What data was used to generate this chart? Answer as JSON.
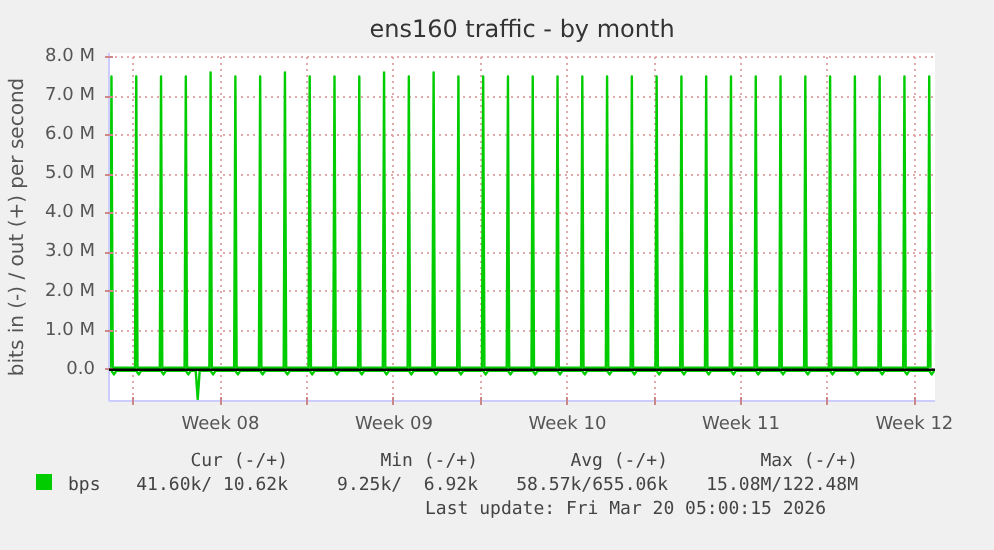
{
  "chart_data": {
    "type": "line",
    "title": "ens160 traffic - by month",
    "ylabel": "bits in (-) / out (+) per second",
    "xlim": [
      "2026-02-15T00:00",
      "2026-03-20T08:00"
    ],
    "ylim": [
      -0.8,
      8.1
    ],
    "xticks": [
      {
        "value": "2026-02-16",
        "label": null
      },
      {
        "value": "2026-02-19T12:00",
        "label": "Week 08"
      },
      {
        "value": "2026-02-23",
        "label": null
      },
      {
        "value": "2026-02-26T12:00",
        "label": "Week 09"
      },
      {
        "value": "2026-03-02",
        "label": null
      },
      {
        "value": "2026-03-05T12:00",
        "label": "Week 10"
      },
      {
        "value": "2026-03-09",
        "label": null
      },
      {
        "value": "2026-03-12T12:00",
        "label": "Week 11"
      },
      {
        "value": "2026-03-16",
        "label": null
      },
      {
        "value": "2026-03-19T12:00",
        "label": "Week 12"
      }
    ],
    "yticks": [
      {
        "value": 0,
        "label": "0.0"
      },
      {
        "value": 1,
        "label": "1.0 M"
      },
      {
        "value": 2,
        "label": "2.0 M"
      },
      {
        "value": 3,
        "label": "3.0 M"
      },
      {
        "value": 4,
        "label": "4.0 M"
      },
      {
        "value": 5,
        "label": "5.0 M"
      },
      {
        "value": 6,
        "label": "6.0 M"
      },
      {
        "value": 7,
        "label": "7.0 M"
      },
      {
        "value": 8,
        "label": "8.0 M"
      }
    ],
    "grid": true,
    "legend": "bottom",
    "marker": "none",
    "line_style": "solid",
    "ref_lines": [
      {
        "axis": "y",
        "value": 0,
        "color": "#000000"
      }
    ],
    "series": [
      {
        "name": "bps",
        "color": "#00cc00",
        "x": [
          "2026-02-15T01:12",
          "2026-02-15T02:24",
          "2026-02-15T03:36",
          "2026-02-16T01:12",
          "2026-02-16T02:24",
          "2026-02-16T03:36",
          "2026-02-17T01:12",
          "2026-02-17T02:24",
          "2026-02-17T03:36",
          "2026-02-18T01:12",
          "2026-02-18T02:24",
          "2026-02-18T03:36",
          "2026-02-19T01:12",
          "2026-02-19T02:24",
          "2026-02-19T03:36",
          "2026-02-20T01:12",
          "2026-02-20T02:24",
          "2026-02-20T03:36",
          "2026-02-21T01:12",
          "2026-02-21T02:24",
          "2026-02-21T03:36",
          "2026-02-22T01:12",
          "2026-02-22T02:24",
          "2026-02-22T03:36",
          "2026-02-23T01:12",
          "2026-02-23T02:24",
          "2026-02-23T03:36",
          "2026-02-24T01:12",
          "2026-02-24T02:24",
          "2026-02-24T03:36",
          "2026-02-25T01:12",
          "2026-02-25T02:24",
          "2026-02-25T03:36",
          "2026-02-26T01:12",
          "2026-02-26T02:24",
          "2026-02-26T03:36",
          "2026-02-27T01:12",
          "2026-02-27T02:24",
          "2026-02-27T03:36",
          "2026-02-28T01:12",
          "2026-02-28T02:24",
          "2026-02-28T03:36",
          "2026-03-01T01:12",
          "2026-03-01T02:24",
          "2026-03-01T03:36",
          "2026-03-02T01:12",
          "2026-03-02T02:24",
          "2026-03-02T03:36",
          "2026-03-03T01:12",
          "2026-03-03T02:24",
          "2026-03-03T03:36",
          "2026-03-04T01:12",
          "2026-03-04T02:24",
          "2026-03-04T03:36",
          "2026-03-05T01:12",
          "2026-03-05T02:24",
          "2026-03-05T03:36",
          "2026-03-06T01:12",
          "2026-03-06T02:24",
          "2026-03-06T03:36",
          "2026-03-07T01:12",
          "2026-03-07T02:24",
          "2026-03-07T03:36",
          "2026-03-08T01:12",
          "2026-03-08T02:24",
          "2026-03-08T03:36",
          "2026-03-09T01:12",
          "2026-03-09T02:24",
          "2026-03-09T03:36",
          "2026-03-10T01:12",
          "2026-03-10T02:24",
          "2026-03-10T03:36",
          "2026-03-11T01:12",
          "2026-03-11T02:24",
          "2026-03-11T03:36",
          "2026-03-12T01:12",
          "2026-03-12T02:24",
          "2026-03-12T03:36",
          "2026-03-13T01:12",
          "2026-03-13T02:24",
          "2026-03-13T03:36",
          "2026-03-14T01:12",
          "2026-03-14T02:24",
          "2026-03-14T03:36",
          "2026-03-15T01:12",
          "2026-03-15T02:24",
          "2026-03-15T03:36",
          "2026-03-16T01:12",
          "2026-03-16T02:24",
          "2026-03-16T03:36",
          "2026-03-17T01:12",
          "2026-03-17T02:24",
          "2026-03-17T03:36",
          "2026-03-18T01:12",
          "2026-03-18T02:24",
          "2026-03-18T03:36",
          "2026-03-19T01:12",
          "2026-03-19T02:24",
          "2026-03-19T03:36",
          "2026-03-20T01:12",
          "2026-03-20T02:24",
          "2026-03-20T03:36"
        ],
        "values": [
          0.05,
          7.5,
          0.05,
          0.05,
          7.5,
          0.05,
          0.05,
          7.5,
          0.05,
          0.05,
          7.5,
          0.05,
          0.05,
          7.6,
          0.05,
          0.05,
          7.5,
          0.05,
          0.05,
          7.5,
          0.05,
          0.05,
          7.6,
          0.05,
          0.05,
          7.5,
          0.05,
          0.05,
          7.5,
          0.05,
          0.05,
          7.5,
          0.05,
          0.05,
          7.6,
          0.05,
          0.05,
          7.5,
          0.05,
          0.05,
          7.6,
          0.05,
          0.05,
          7.5,
          0.05,
          0.05,
          7.5,
          0.05,
          0.05,
          7.5,
          0.05,
          0.05,
          7.5,
          0.05,
          0.05,
          7.5,
          0.05,
          0.05,
          7.5,
          0.05,
          0.05,
          7.5,
          0.05,
          0.05,
          7.5,
          0.05,
          0.05,
          7.5,
          0.05,
          0.05,
          7.5,
          0.05,
          0.05,
          7.5,
          0.05,
          0.05,
          7.5,
          0.05,
          0.05,
          7.5,
          0.05,
          0.05,
          7.5,
          0.05,
          0.05,
          7.5,
          0.05,
          0.05,
          7.5,
          0.05,
          0.05,
          7.5,
          0.05,
          0.05,
          7.5,
          0.05,
          0.05,
          7.5,
          0.05,
          0.05,
          7.5,
          0.05
        ]
      },
      {
        "color": "#00cc00",
        "x": [
          "2026-02-15T02:24",
          "2026-02-15T04:48",
          "2026-02-15T07:12",
          "2026-02-16T02:24",
          "2026-02-16T04:48",
          "2026-02-16T07:12",
          "2026-02-17T02:24",
          "2026-02-17T04:48",
          "2026-02-17T07:12",
          "2026-02-18T02:24",
          "2026-02-18T04:48",
          "2026-02-18T07:12",
          "2026-02-18T12:00",
          "2026-02-18T13:55",
          "2026-02-18T15:50",
          "2026-02-19T02:24",
          "2026-02-19T04:48",
          "2026-02-19T07:12",
          "2026-02-20T02:24",
          "2026-02-20T04:48",
          "2026-02-20T07:12",
          "2026-02-21T02:24",
          "2026-02-21T04:48",
          "2026-02-21T07:12",
          "2026-02-22T02:24",
          "2026-02-22T04:48",
          "2026-02-22T07:12",
          "2026-02-23T02:24",
          "2026-02-23T04:48",
          "2026-02-23T07:12",
          "2026-02-24T02:24",
          "2026-02-24T04:48",
          "2026-02-24T07:12",
          "2026-02-25T02:24",
          "2026-02-25T04:48",
          "2026-02-25T07:12",
          "2026-02-26T02:24",
          "2026-02-26T04:48",
          "2026-02-26T07:12",
          "2026-02-27T02:24",
          "2026-02-27T04:48",
          "2026-02-27T07:12",
          "2026-02-28T02:24",
          "2026-02-28T04:48",
          "2026-02-28T07:12",
          "2026-03-01T02:24",
          "2026-03-01T04:48",
          "2026-03-01T07:12",
          "2026-03-02T02:24",
          "2026-03-02T04:48",
          "2026-03-02T07:12",
          "2026-03-03T02:24",
          "2026-03-03T04:48",
          "2026-03-03T07:12",
          "2026-03-04T02:24",
          "2026-03-04T04:48",
          "2026-03-04T07:12",
          "2026-03-05T02:24",
          "2026-03-05T04:48",
          "2026-03-05T07:12",
          "2026-03-06T02:24",
          "2026-03-06T04:48",
          "2026-03-06T07:12",
          "2026-03-07T02:24",
          "2026-03-07T04:48",
          "2026-03-07T07:12",
          "2026-03-08T02:24",
          "2026-03-08T04:48",
          "2026-03-08T07:12",
          "2026-03-09T02:24",
          "2026-03-09T04:48",
          "2026-03-09T07:12",
          "2026-03-10T02:24",
          "2026-03-10T04:48",
          "2026-03-10T07:12",
          "2026-03-11T02:24",
          "2026-03-11T04:48",
          "2026-03-11T07:12",
          "2026-03-12T02:24",
          "2026-03-12T04:48",
          "2026-03-12T07:12",
          "2026-03-13T02:24",
          "2026-03-13T04:48",
          "2026-03-13T07:12",
          "2026-03-14T02:24",
          "2026-03-14T04:48",
          "2026-03-14T07:12",
          "2026-03-15T02:24",
          "2026-03-15T04:48",
          "2026-03-15T07:12",
          "2026-03-16T02:24",
          "2026-03-16T04:48",
          "2026-03-16T07:12",
          "2026-03-17T02:24",
          "2026-03-17T04:48",
          "2026-03-17T07:12",
          "2026-03-18T02:24",
          "2026-03-18T04:48",
          "2026-03-18T07:12",
          "2026-03-19T02:24",
          "2026-03-19T04:48",
          "2026-03-19T07:12",
          "2026-03-20T02:24",
          "2026-03-20T04:48",
          "2026-03-20T07:12"
        ],
        "values": [
          -0.03,
          -0.12,
          -0.03,
          -0.03,
          -0.12,
          -0.03,
          -0.03,
          -0.12,
          -0.03,
          -0.03,
          -0.12,
          -0.03,
          -0.03,
          -0.75,
          -0.03,
          -0.03,
          -0.12,
          -0.03,
          -0.03,
          -0.12,
          -0.03,
          -0.03,
          -0.12,
          -0.03,
          -0.03,
          -0.12,
          -0.03,
          -0.03,
          -0.12,
          -0.03,
          -0.03,
          -0.12,
          -0.03,
          -0.03,
          -0.12,
          -0.03,
          -0.03,
          -0.12,
          -0.03,
          -0.03,
          -0.12,
          -0.03,
          -0.03,
          -0.12,
          -0.03,
          -0.03,
          -0.12,
          -0.03,
          -0.03,
          -0.12,
          -0.03,
          -0.03,
          -0.12,
          -0.03,
          -0.03,
          -0.12,
          -0.03,
          -0.03,
          -0.12,
          -0.03,
          -0.03,
          -0.12,
          -0.03,
          -0.03,
          -0.12,
          -0.03,
          -0.03,
          -0.12,
          -0.03,
          -0.03,
          -0.12,
          -0.03,
          -0.03,
          -0.12,
          -0.03,
          -0.03,
          -0.12,
          -0.03,
          -0.03,
          -0.12,
          -0.03,
          -0.03,
          -0.12,
          -0.03,
          -0.03,
          -0.12,
          -0.03,
          -0.03,
          -0.12,
          -0.03,
          -0.03,
          -0.12,
          -0.03,
          -0.03,
          -0.12,
          -0.03,
          -0.03,
          -0.12,
          -0.03,
          -0.03,
          -0.12,
          -0.03,
          -0.03,
          -0.12,
          -0.03
        ]
      }
    ],
    "annotations": [
      "Cur (-/+)",
      "Min (-/+)",
      "Avg (-/+)",
      "Max (-/+)",
      "41.60k/ 10.62k",
      "9.25k/  6.92k",
      "58.57k/655.06k",
      "15.08M/122.48M",
      "Last update: Fri Mar 20 05:00:15 2026"
    ]
  }
}
